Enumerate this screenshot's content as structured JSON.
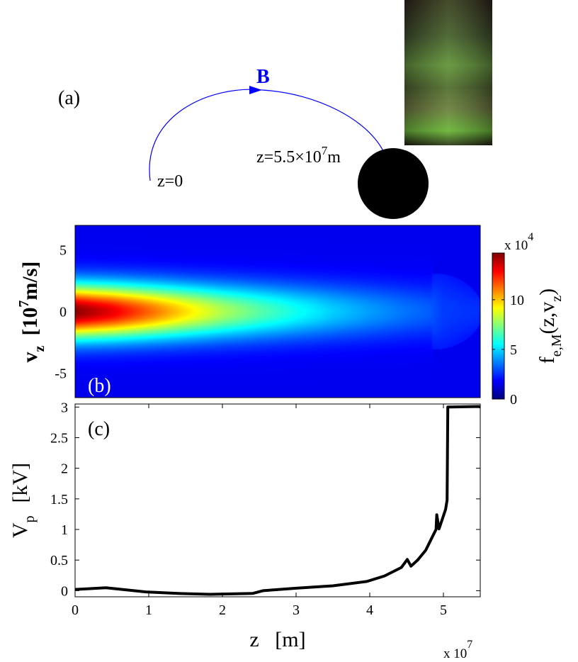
{
  "panel_a": {
    "label": "(a)",
    "field_label": "B",
    "start_label": "z=0",
    "end_label_prefix": "z=5.5×10",
    "end_label_exp": "7",
    "end_label_suffix": "m",
    "colors": {
      "field_line": "#0000ff",
      "planet": "#000000"
    }
  },
  "chart_data": [
    {
      "type": "heatmap",
      "panel_label": "(b)",
      "ylabel_main": "v",
      "ylabel_sub": "z",
      "ylabel_unit_pre": "[10",
      "ylabel_unit_exp": "7",
      "ylabel_unit_post": "m/s]",
      "xlim": [
        0,
        5.5
      ],
      "ylim": [
        -7,
        7
      ],
      "yticks": [
        -5,
        0,
        5
      ],
      "ytick_labels": [
        "-5",
        "0",
        "5"
      ],
      "colormap": "jet",
      "clim": [
        0,
        14.7
      ],
      "colorbar_ticks": [
        0,
        5,
        10
      ],
      "colorbar_tick_labels": [
        "0",
        "5",
        "10"
      ],
      "colorbar_multiplier": "x 10",
      "colorbar_multiplier_exp": "4",
      "colorbar_label_main": "f",
      "colorbar_label_sub": "e,M",
      "colorbar_label_post": "(z,v",
      "colorbar_label_sub2": "z",
      "colorbar_label_end": ")",
      "profile": {
        "z": [
          0,
          0.5,
          1,
          1.5,
          2,
          2.5,
          3,
          3.5,
          4,
          4.5,
          4.8,
          5.0,
          5.5
        ],
        "peak": [
          14.5,
          13,
          11,
          9,
          7.2,
          5.8,
          4.6,
          3.6,
          2.8,
          2.1,
          1.8,
          1.2,
          1.0
        ],
        "vwidth": [
          1.55,
          1.55,
          1.55,
          1.55,
          1.55,
          1.55,
          1.55,
          1.55,
          1.55,
          1.55,
          1.55,
          2.2,
          1.2
        ]
      }
    },
    {
      "type": "line",
      "panel_label": "(c)",
      "xlabel": "z   [m]",
      "xlabel_multiplier": "x 10",
      "xlabel_multiplier_exp": "7",
      "ylabel_main": "V",
      "ylabel_sub": "p",
      "ylabel_unit": "[kV]",
      "xlim": [
        0,
        5.5
      ],
      "ylim": [
        -0.1,
        3.05
      ],
      "xticks": [
        0,
        1,
        2,
        3,
        4,
        5
      ],
      "xtick_labels": [
        "0",
        "1",
        "2",
        "3",
        "4",
        "5"
      ],
      "yticks": [
        0,
        0.5,
        1,
        1.5,
        2,
        2.5,
        3
      ],
      "ytick_labels": [
        "0",
        "0.5",
        "1",
        "1.5",
        "2",
        "2.5",
        "3"
      ],
      "series": [
        {
          "x": [
            0,
            0.42,
            0.96,
            1.4,
            1.83,
            2.41,
            2.55,
            3.0,
            3.5,
            3.96,
            4.2,
            4.43,
            4.51,
            4.56,
            4.65,
            4.76,
            4.87,
            4.9,
            4.91,
            4.94,
            4.98,
            5.03,
            5.05,
            5.06,
            5.48,
            5.5
          ],
          "y": [
            0.02,
            0.047,
            -0.02,
            -0.045,
            -0.06,
            -0.045,
            0.0,
            0.04,
            0.08,
            0.15,
            0.24,
            0.38,
            0.51,
            0.4,
            0.5,
            0.66,
            0.93,
            1.0,
            1.24,
            1.01,
            1.15,
            1.33,
            1.48,
            3.0,
            3.01,
            3.0
          ],
          "color": "#000000"
        }
      ]
    }
  ]
}
